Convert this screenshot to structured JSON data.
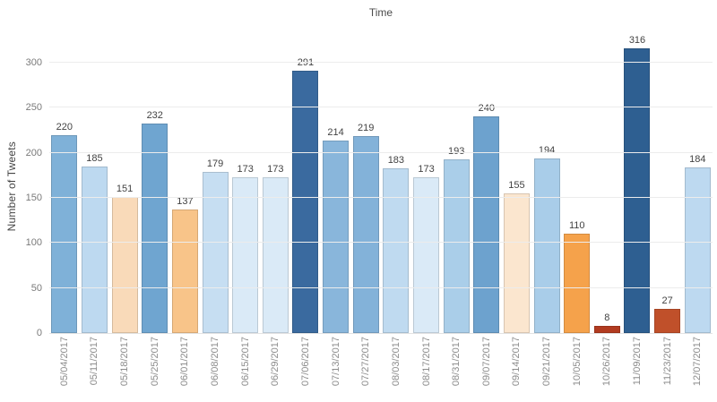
{
  "title": "Time",
  "y_axis": {
    "label": "Number of Tweets",
    "ticks": [
      0,
      50,
      100,
      150,
      200,
      250,
      300
    ]
  },
  "chart_data": {
    "type": "bar",
    "title": "Time",
    "xlabel": "",
    "ylabel": "Number of Tweets",
    "ylim": [
      0,
      330
    ],
    "grid": true,
    "legend": "none",
    "color_encoding": "diverging orange-blue by value (high=dark blue, low=dark red)",
    "categories": [
      "05/04/2017",
      "05/11/2017",
      "05/18/2017",
      "05/25/2017",
      "06/01/2017",
      "06/08/2017",
      "06/15/2017",
      "06/29/2017",
      "07/06/2017",
      "07/13/2017",
      "07/27/2017",
      "08/03/2017",
      "08/17/2017",
      "08/31/2017",
      "09/07/2017",
      "09/14/2017",
      "09/21/2017",
      "10/05/2017",
      "10/26/2017",
      "11/09/2017",
      "11/23/2017",
      "12/07/2017"
    ],
    "values": [
      220,
      185,
      151,
      232,
      137,
      179,
      173,
      173,
      291,
      214,
      219,
      183,
      173,
      193,
      240,
      155,
      194,
      110,
      8,
      316,
      27,
      184
    ],
    "bar_colors": [
      "#7FB1D8",
      "#BDD9F0",
      "#F9DAB9",
      "#6FA5D0",
      "#F8C489",
      "#C6DEF2",
      "#DAEAF7",
      "#DAEAF7",
      "#3A6A9F",
      "#89B6DB",
      "#83B2D9",
      "#BFDAF0",
      "#DAEAF7",
      "#AACEE9",
      "#6DA2CE",
      "#FBE6CF",
      "#A9CDE9",
      "#F5A24B",
      "#B23B20",
      "#2E5F91",
      "#C0502A",
      "#BDD9F0"
    ]
  }
}
